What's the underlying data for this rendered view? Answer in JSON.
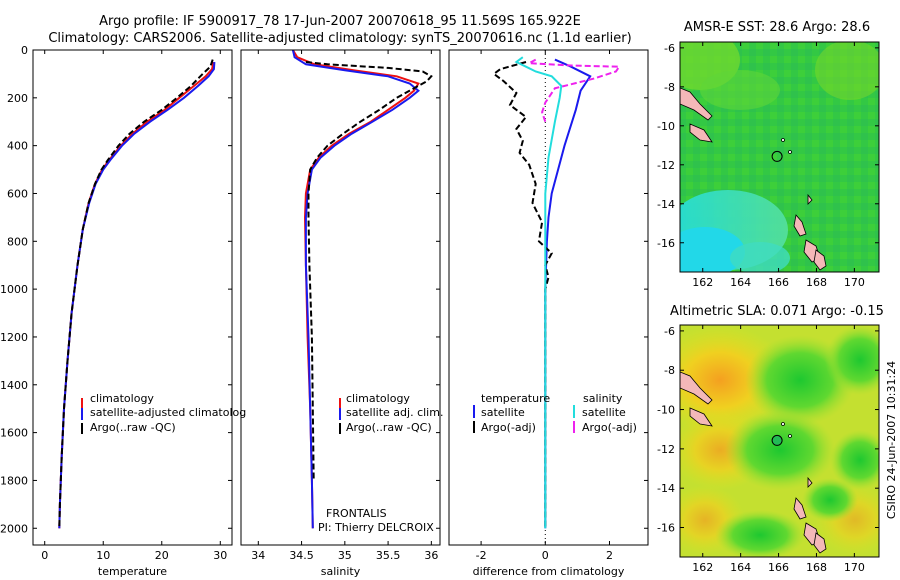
{
  "title": {
    "line1": "Argo profile: IF 5900917_78 17-Jun-2007 20070618_95 11.569S 165.922E",
    "line2": "Climatology: CARS2006. Satellite-adjusted climatology: synTS_20070616.nc (1.1d earlier)"
  },
  "side_label": "CSIRO 24-Jun-2007 10:31:24",
  "colors": {
    "red": "#ee1111",
    "blue": "#1a1aee",
    "black": "#000000",
    "cyan": "#22dddd",
    "magenta": "#ee22ee"
  },
  "chart_data": [
    {
      "type": "line",
      "name": "temperature",
      "xlabel": "temperature",
      "ylabel": "",
      "xlim": [
        -2,
        32
      ],
      "ylim": [
        2070,
        0
      ],
      "xticks": [
        0,
        10,
        20,
        30
      ],
      "yticks": [
        0,
        200,
        400,
        600,
        800,
        1000,
        1200,
        1400,
        1600,
        1800,
        2000
      ],
      "legend": [
        "climatology",
        "satellite-adjusted climatolog",
        "Argo(..raw -QC)"
      ],
      "series": [
        {
          "name": "climatology",
          "color": "red",
          "dash": "",
          "points": [
            [
              28.8,
              50
            ],
            [
              28.6,
              80
            ],
            [
              27.5,
              110
            ],
            [
              25.5,
              150
            ],
            [
              23,
              200
            ],
            [
              20.5,
              250
            ],
            [
              17.5,
              300
            ],
            [
              15,
              350
            ],
            [
              13,
              400
            ],
            [
              11,
              460
            ],
            [
              9.8,
              500
            ],
            [
              8.6,
              560
            ],
            [
              7.5,
              640
            ],
            [
              6.5,
              750
            ],
            [
              5.6,
              900
            ],
            [
              4.6,
              1100
            ],
            [
              3.9,
              1300
            ],
            [
              3.3,
              1500
            ],
            [
              2.9,
              1700
            ],
            [
              2.6,
              1900
            ],
            [
              2.5,
              2000
            ]
          ]
        },
        {
          "name": "satellite",
          "color": "blue",
          "dash": "",
          "points": [
            [
              29,
              50
            ],
            [
              28.9,
              80
            ],
            [
              28,
              110
            ],
            [
              26.2,
              150
            ],
            [
              23.8,
              200
            ],
            [
              21,
              250
            ],
            [
              18,
              300
            ],
            [
              15.3,
              350
            ],
            [
              13.2,
              400
            ],
            [
              11.2,
              460
            ],
            [
              10,
              500
            ],
            [
              8.7,
              560
            ],
            [
              7.6,
              640
            ],
            [
              6.5,
              750
            ],
            [
              5.6,
              900
            ],
            [
              4.6,
              1100
            ],
            [
              3.9,
              1300
            ],
            [
              3.3,
              1500
            ],
            [
              2.9,
              1700
            ],
            [
              2.6,
              1900
            ],
            [
              2.5,
              2000
            ]
          ]
        },
        {
          "name": "argo",
          "color": "black",
          "dash": "6,3",
          "points": [
            [
              28.7,
              40
            ],
            [
              28.3,
              70
            ],
            [
              27,
              100
            ],
            [
              25,
              150
            ],
            [
              22.6,
              200
            ],
            [
              20,
              250
            ],
            [
              17,
              300
            ],
            [
              14.5,
              350
            ],
            [
              12.6,
              400
            ],
            [
              10.8,
              460
            ],
            [
              9.7,
              500
            ],
            [
              8.6,
              560
            ],
            [
              7.5,
              640
            ],
            [
              6.5,
              750
            ],
            [
              5.6,
              900
            ],
            [
              4.6,
              1100
            ],
            [
              3.9,
              1300
            ],
            [
              3.3,
              1500
            ],
            [
              2.9,
              1700
            ],
            [
              2.6,
              1900
            ],
            [
              2.5,
              2000
            ]
          ]
        }
      ]
    },
    {
      "type": "line",
      "name": "salinity",
      "xlabel": "salinity",
      "xlim": [
        33.8,
        36.1
      ],
      "ylim": [
        2070,
        0
      ],
      "xticks": [
        34,
        34.5,
        35,
        35.5,
        36
      ],
      "xticklabels": [
        "34",
        "34.5",
        "35",
        "35.5",
        "36"
      ],
      "legend": [
        "climatology",
        "satellite adj. clim.",
        "Argo(..raw -QC)"
      ],
      "annotation": [
        "FRONTALIS",
        "PI: Thierry DELCROIX"
      ],
      "series": [
        {
          "name": "climatology",
          "color": "red",
          "dash": "",
          "points": [
            [
              34.4,
              0
            ],
            [
              34.45,
              30
            ],
            [
              34.65,
              60
            ],
            [
              35.1,
              85
            ],
            [
              35.6,
              110
            ],
            [
              35.85,
              140
            ],
            [
              35.8,
              170
            ],
            [
              35.7,
              200
            ],
            [
              35.5,
              250
            ],
            [
              35.3,
              300
            ],
            [
              35.05,
              350
            ],
            [
              34.85,
              400
            ],
            [
              34.7,
              450
            ],
            [
              34.6,
              500
            ],
            [
              34.55,
              600
            ],
            [
              34.54,
              700
            ],
            [
              34.55,
              900
            ],
            [
              34.57,
              1200
            ],
            [
              34.6,
              1500
            ],
            [
              34.62,
              1800
            ],
            [
              34.63,
              2000
            ]
          ]
        },
        {
          "name": "satellite",
          "color": "blue",
          "dash": "",
          "points": [
            [
              34.4,
              0
            ],
            [
              34.42,
              30
            ],
            [
              34.55,
              60
            ],
            [
              35,
              85
            ],
            [
              35.5,
              110
            ],
            [
              35.75,
              140
            ],
            [
              35.85,
              170
            ],
            [
              35.75,
              200
            ],
            [
              35.55,
              250
            ],
            [
              35.32,
              300
            ],
            [
              35.08,
              350
            ],
            [
              34.88,
              400
            ],
            [
              34.72,
              450
            ],
            [
              34.62,
              500
            ],
            [
              34.57,
              600
            ],
            [
              34.55,
              700
            ],
            [
              34.55,
              900
            ],
            [
              34.58,
              1200
            ],
            [
              34.6,
              1500
            ],
            [
              34.62,
              1800
            ],
            [
              34.63,
              2000
            ]
          ]
        },
        {
          "name": "argo",
          "color": "black",
          "dash": "6,3",
          "points": [
            [
              34.55,
              50
            ],
            [
              34.8,
              60
            ],
            [
              35.5,
              75
            ],
            [
              35.9,
              90
            ],
            [
              36,
              110
            ],
            [
              35.95,
              130
            ],
            [
              35.8,
              160
            ],
            [
              35.6,
              200
            ],
            [
              35.4,
              250
            ],
            [
              35.18,
              300
            ],
            [
              34.98,
              350
            ],
            [
              34.8,
              400
            ],
            [
              34.68,
              450
            ],
            [
              34.6,
              500
            ],
            [
              34.58,
              600
            ],
            [
              34.58,
              700
            ],
            [
              34.59,
              900
            ],
            [
              34.62,
              1200
            ],
            [
              34.63,
              1500
            ],
            [
              34.64,
              1800
            ]
          ]
        }
      ]
    },
    {
      "type": "line",
      "name": "difference",
      "xlabel": "difference from climatology",
      "xlim": [
        -3,
        3.2
      ],
      "ylim": [
        2070,
        0
      ],
      "xticks": [
        -2,
        0,
        2
      ],
      "legend_left": {
        "title": "temperature",
        "items": [
          "satellite",
          "Argo(-adj)"
        ]
      },
      "legend_right": {
        "title": "salinity",
        "items": [
          "satellite",
          "Argo(-adj)"
        ]
      },
      "series": [
        {
          "name": "temperature satellite",
          "color": "blue",
          "dash": "",
          "points": [
            [
              0.3,
              40
            ],
            [
              0.8,
              70
            ],
            [
              1.4,
              110
            ],
            [
              1.1,
              170
            ],
            [
              0.95,
              250
            ],
            [
              0.6,
              400
            ],
            [
              0.4,
              500
            ],
            [
              0.2,
              600
            ],
            [
              0.1,
              700
            ],
            [
              0.05,
              800
            ],
            [
              0,
              1000
            ],
            [
              0,
              1500
            ],
            [
              0,
              2000
            ]
          ]
        },
        {
          "name": "temperature argo",
          "color": "black",
          "dash": "6,3",
          "points": [
            [
              -0.6,
              50
            ],
            [
              -1.4,
              80
            ],
            [
              -1.6,
              100
            ],
            [
              -1.3,
              130
            ],
            [
              -0.9,
              180
            ],
            [
              -1.1,
              230
            ],
            [
              -0.6,
              280
            ],
            [
              -0.9,
              330
            ],
            [
              -0.7,
              380
            ],
            [
              -0.8,
              430
            ],
            [
              -0.5,
              480
            ],
            [
              -0.3,
              560
            ],
            [
              -0.4,
              640
            ],
            [
              -0.1,
              720
            ],
            [
              -0.2,
              800
            ],
            [
              0.2,
              850
            ],
            [
              0,
              900
            ],
            [
              0.1,
              950
            ],
            [
              0,
              1000
            ],
            [
              0,
              1500
            ],
            [
              0,
              2000
            ]
          ]
        },
        {
          "name": "salinity satellite",
          "color": "cyan",
          "dash": "",
          "points": [
            [
              -0.7,
              30
            ],
            [
              -0.9,
              50
            ],
            [
              -0.6,
              70
            ],
            [
              -0.3,
              90
            ],
            [
              0.2,
              110
            ],
            [
              0.5,
              150
            ],
            [
              0.45,
              200
            ],
            [
              0.3,
              300
            ],
            [
              0.1,
              450
            ],
            [
              0,
              600
            ],
            [
              0,
              2000
            ]
          ]
        },
        {
          "name": "salinity argo",
          "color": "magenta",
          "dash": "6,3",
          "points": [
            [
              -0.3,
              40
            ],
            [
              -0.5,
              55
            ],
            [
              0.8,
              65
            ],
            [
              2.3,
              70
            ],
            [
              2.2,
              90
            ],
            [
              1.5,
              120
            ],
            [
              0.3,
              160
            ],
            [
              0,
              220
            ],
            [
              -0.1,
              260
            ],
            [
              0,
              300
            ]
          ]
        }
      ]
    },
    {
      "type": "heatmap",
      "name": "sst_map",
      "title": "AMSR-E SST: 28.6 Argo: 28.6",
      "xlim": [
        160.8,
        171.3
      ],
      "ylim": [
        -17.5,
        -5.7
      ],
      "xticks": [
        162,
        164,
        166,
        168,
        170
      ],
      "yticks": [
        -6,
        -8,
        -10,
        -12,
        -14,
        -16
      ],
      "marker": {
        "lon": 165.922,
        "lat": -11.569
      }
    },
    {
      "type": "heatmap",
      "name": "sla_map",
      "title": "Altimetric SLA: 0.071 Argo: -0.15",
      "xlim": [
        160.8,
        171.3
      ],
      "ylim": [
        -17.5,
        -5.7
      ],
      "xticks": [
        162,
        164,
        166,
        168,
        170
      ],
      "yticks": [
        -6,
        -8,
        -10,
        -12,
        -14,
        -16
      ],
      "marker": {
        "lon": 165.922,
        "lat": -11.569
      }
    }
  ]
}
